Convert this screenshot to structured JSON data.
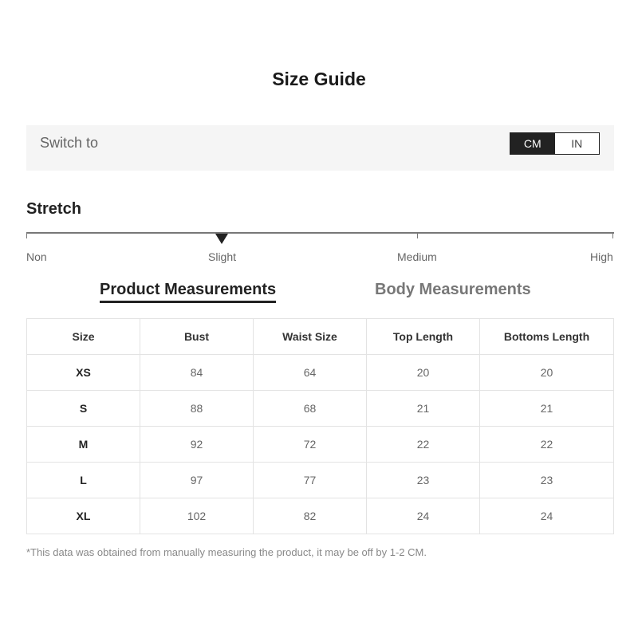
{
  "title": "Size Guide",
  "switch": {
    "label": "Switch to",
    "options": [
      "CM",
      "IN"
    ],
    "selected": "CM"
  },
  "stretch": {
    "heading": "Stretch",
    "levels": [
      "Non",
      "Slight",
      "Medium",
      "High"
    ],
    "selected": "Slight"
  },
  "tabs": [
    {
      "label": "Product Measurements",
      "active": true
    },
    {
      "label": "Body Measurements",
      "active": false
    }
  ],
  "table": {
    "headers": [
      "Size",
      "Bust",
      "Waist Size",
      "Top Length",
      "Bottoms Length"
    ],
    "rows": [
      [
        "XS",
        "84",
        "64",
        "20",
        "20"
      ],
      [
        "S",
        "88",
        "68",
        "21",
        "21"
      ],
      [
        "M",
        "92",
        "72",
        "22",
        "22"
      ],
      [
        "L",
        "97",
        "77",
        "23",
        "23"
      ],
      [
        "XL",
        "102",
        "82",
        "24",
        "24"
      ]
    ]
  },
  "note": "*This data was obtained from manually measuring the product, it may be off by 1-2 CM."
}
